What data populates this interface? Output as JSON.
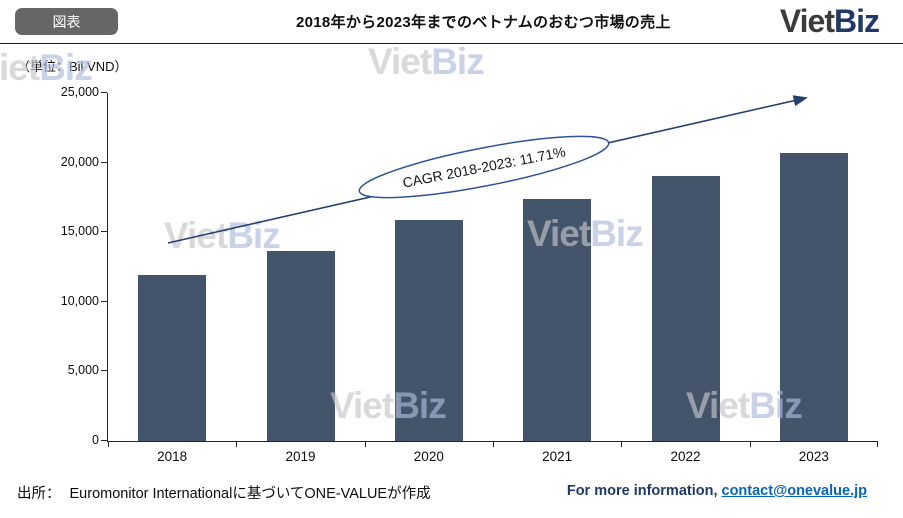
{
  "header": {
    "badge": "図表",
    "title": "2018年から2023年までのベトナムのおむつ市場の売上",
    "logo": {
      "part1": "Viet",
      "part2": "Biz"
    }
  },
  "unit_label": "（単位：Bil VND）",
  "watermark": {
    "part1": "Viet",
    "part2": "Biz"
  },
  "annotation": {
    "cagr": "CAGR 2018-2023: 11.71%"
  },
  "footer": {
    "source_label": "出所：",
    "source_text": "Euromonitor Internationalに基づいてONE-VALUEが作成",
    "contact_prefix": "For more information, ",
    "contact_link": "contact@onevalue.jp"
  },
  "colors": {
    "bar": "#44546A",
    "accent_navy": "#1F3864",
    "ellipse_stroke": "#2F5496",
    "link_blue": "#0563C1",
    "badge_gray": "#666666"
  },
  "chart_data": {
    "type": "bar",
    "title": "2018年から2023年までのベトナムのおむつ市場の売上",
    "unit": "Bil VND",
    "categories": [
      "2018",
      "2019",
      "2020",
      "2021",
      "2022",
      "2023"
    ],
    "values": [
      11900,
      13650,
      15880,
      17390,
      19040,
      20690
    ],
    "ylim": [
      0,
      25000
    ],
    "ytick_step": 5000,
    "ytick_labels": [
      "0",
      "5,000",
      "10,000",
      "15,000",
      "20,000",
      "25,000"
    ],
    "grid": false,
    "legend": "none",
    "cagr_annotation": "CAGR 2018-2023: 11.71%"
  }
}
